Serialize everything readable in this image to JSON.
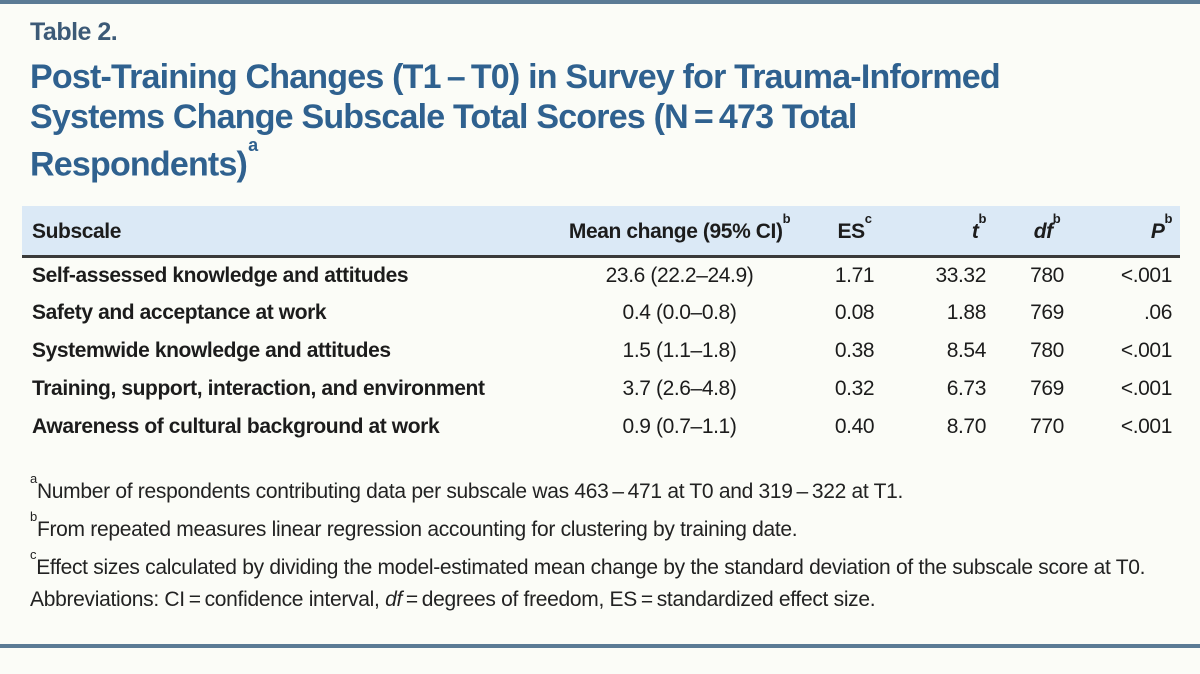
{
  "header": {
    "table_label": "Table 2.",
    "title_lines": [
      "Post-Training Changes (T1 – T0) in Survey for Trauma-Informed",
      "Systems Change Subscale Total Scores (N = 473 Total",
      "Respondents)"
    ],
    "title_superscript": "a"
  },
  "colors": {
    "accent_title_blue": "#2f618f",
    "table_label_blue": "#3c5a77",
    "header_row_bg": "#dbe9f6",
    "rule_bar_blue": "#5b7b95",
    "header_rule_dark": "#3a3a3a",
    "page_background": "#fbfcf7"
  },
  "table": {
    "columns": [
      {
        "label": "Subscale",
        "sup": ""
      },
      {
        "label": "Mean change (95% CI)",
        "sup": "b"
      },
      {
        "label": "ES",
        "sup": "c"
      },
      {
        "label": "t",
        "sup": "b"
      },
      {
        "label": "df",
        "sup": "b"
      },
      {
        "label": "P",
        "sup": "b"
      }
    ],
    "rows": [
      {
        "subscale": "Self-assessed knowledge and attitudes",
        "mean_change": "23.6 (22.2–24.9)",
        "es": "1.71",
        "t": "33.32",
        "df": "780",
        "p": "<.001"
      },
      {
        "subscale": "Safety and acceptance at work",
        "mean_change": "0.4 (0.0–0.8)",
        "es": "0.08",
        "t": "1.88",
        "df": "769",
        "p": ".06"
      },
      {
        "subscale": "Systemwide knowledge and attitudes",
        "mean_change": "1.5 (1.1–1.8)",
        "es": "0.38",
        "t": "8.54",
        "df": "780",
        "p": "<.001"
      },
      {
        "subscale": "Training, support, interaction, and environment",
        "mean_change": "3.7 (2.6–4.8)",
        "es": "0.32",
        "t": "6.73",
        "df": "769",
        "p": "<.001"
      },
      {
        "subscale": "Awareness of cultural background at work",
        "mean_change": "0.9 (0.7–1.1)",
        "es": "0.40",
        "t": "8.70",
        "df": "770",
        "p": "<.001"
      }
    ]
  },
  "footnotes": [
    {
      "sup": "a",
      "text": "Number of respondents contributing data per subscale was 463 – 471 at T0 and 319 – 322 at T1."
    },
    {
      "sup": "b",
      "text": "From repeated measures linear regression accounting for clustering by training date."
    },
    {
      "sup": "c",
      "text": "Effect sizes calculated by dividing the model-estimated mean change by the standard deviation of the subscale score at T0."
    }
  ],
  "abbreviations": {
    "prefix": "Abbreviations: CI = confidence interval, ",
    "italic_term": "df",
    "suffix": " = degrees of freedom, ES = standardized effect size."
  }
}
